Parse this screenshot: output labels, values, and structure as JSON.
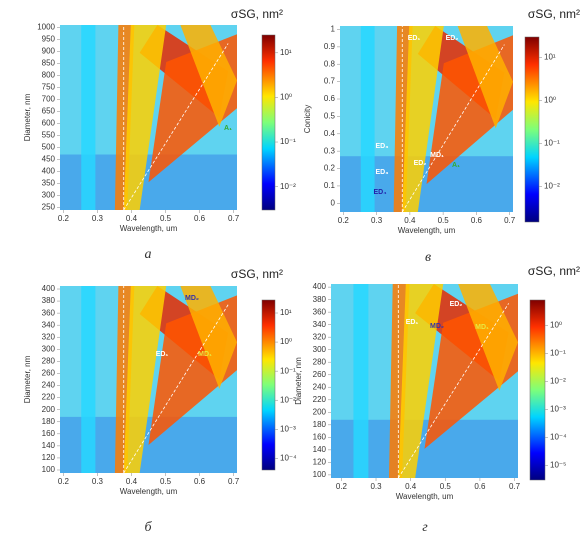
{
  "chart_data": [
    {
      "type": "heatmap",
      "x_label": "Wavelength, um",
      "y_label": "Diameter, nm",
      "colorbar_label": "σSG, nm²",
      "caption": "а",
      "xlim": [
        0.19,
        0.71
      ],
      "xticks": [
        0.2,
        0.3,
        0.4,
        0.5,
        0.6,
        0.7
      ],
      "ylim": [
        240,
        1010
      ],
      "yticks": [
        250,
        300,
        350,
        400,
        450,
        500,
        550,
        600,
        650,
        700,
        750,
        800,
        850,
        900,
        950,
        1000
      ],
      "clim": [
        0.003,
        25
      ],
      "colorbar_log_scale": true,
      "colorbar_ticks": [
        {
          "value": 10,
          "label": "10¹"
        },
        {
          "value": 1,
          "label": "10⁰"
        },
        {
          "value": 0.1,
          "label": "10⁻¹"
        },
        {
          "value": 0.01,
          "label": "10⁻²"
        }
      ],
      "annotations": [
        "A₁"
      ]
    },
    {
      "type": "heatmap",
      "x_label": "Wavelength, um",
      "y_label": "Conicity",
      "colorbar_label": "σSG, nm²",
      "caption": "в",
      "xlim": [
        0.19,
        0.71
      ],
      "xticks": [
        0.2,
        0.3,
        0.4,
        0.5,
        0.6,
        0.7
      ],
      "ylim": [
        -0.05,
        1.02
      ],
      "yticks": [
        0,
        0.1,
        0.2,
        0.3,
        0.4,
        0.5,
        0.6,
        0.7,
        0.8,
        0.9,
        1
      ],
      "clim": [
        0.0015,
        30
      ],
      "colorbar_log_scale": true,
      "colorbar_ticks": [
        {
          "value": 10,
          "label": "10¹"
        },
        {
          "value": 1,
          "label": "10⁰"
        },
        {
          "value": 0.1,
          "label": "10⁻¹"
        },
        {
          "value": 0.01,
          "label": "10⁻²"
        }
      ],
      "annotations": [
        "ED₁",
        "ED₂",
        "ED₃",
        "ED₃",
        "ED₂",
        "MD₁",
        "A₁",
        "ED₄"
      ]
    },
    {
      "type": "heatmap",
      "x_label": "Wavelength, um",
      "y_label": "Diameter, nm",
      "colorbar_label": "σSG, nm²",
      "caption": "б",
      "xlim": [
        0.19,
        0.71
      ],
      "xticks": [
        0.2,
        0.3,
        0.4,
        0.5,
        0.6,
        0.7
      ],
      "ylim": [
        95,
        405
      ],
      "yticks": [
        100,
        120,
        140,
        160,
        180,
        200,
        220,
        240,
        260,
        280,
        300,
        320,
        340,
        360,
        380,
        400
      ],
      "clim": [
        4e-05,
        28
      ],
      "colorbar_log_scale": true,
      "colorbar_ticks": [
        {
          "value": 10,
          "label": "10¹"
        },
        {
          "value": 1,
          "label": "10⁰"
        },
        {
          "value": 0.1,
          "label": "10⁻¹"
        },
        {
          "value": 0.01,
          "label": "10⁻²"
        },
        {
          "value": 0.001,
          "label": "10⁻³"
        },
        {
          "value": 0.0001,
          "label": "10⁻⁴"
        }
      ],
      "annotations": [
        "MD₂",
        "ED₁",
        "MD₁"
      ]
    },
    {
      "type": "heatmap",
      "x_label": "Wavelength, um",
      "y_label": "Diameter, nm",
      "colorbar_label": "σSG, nm²",
      "caption": "г",
      "xlim": [
        0.17,
        0.71
      ],
      "xticks": [
        0.2,
        0.3,
        0.4,
        0.5,
        0.6,
        0.7
      ],
      "ylim": [
        95,
        405
      ],
      "yticks": [
        100,
        120,
        140,
        160,
        180,
        200,
        220,
        240,
        260,
        280,
        300,
        320,
        340,
        360,
        380,
        400
      ],
      "clim": [
        3e-06,
        8
      ],
      "colorbar_log_scale": true,
      "colorbar_ticks": [
        {
          "value": 1,
          "label": "10⁰"
        },
        {
          "value": 0.1,
          "label": "10⁻¹"
        },
        {
          "value": 0.01,
          "label": "10⁻²"
        },
        {
          "value": 0.001,
          "label": "10⁻³"
        },
        {
          "value": 0.0001,
          "label": "10⁻⁴"
        },
        {
          "value": 1e-05,
          "label": "10⁻⁵"
        }
      ],
      "annotations": [
        "ED₁",
        "MD₂",
        "ED₂",
        "MD₁"
      ]
    }
  ]
}
